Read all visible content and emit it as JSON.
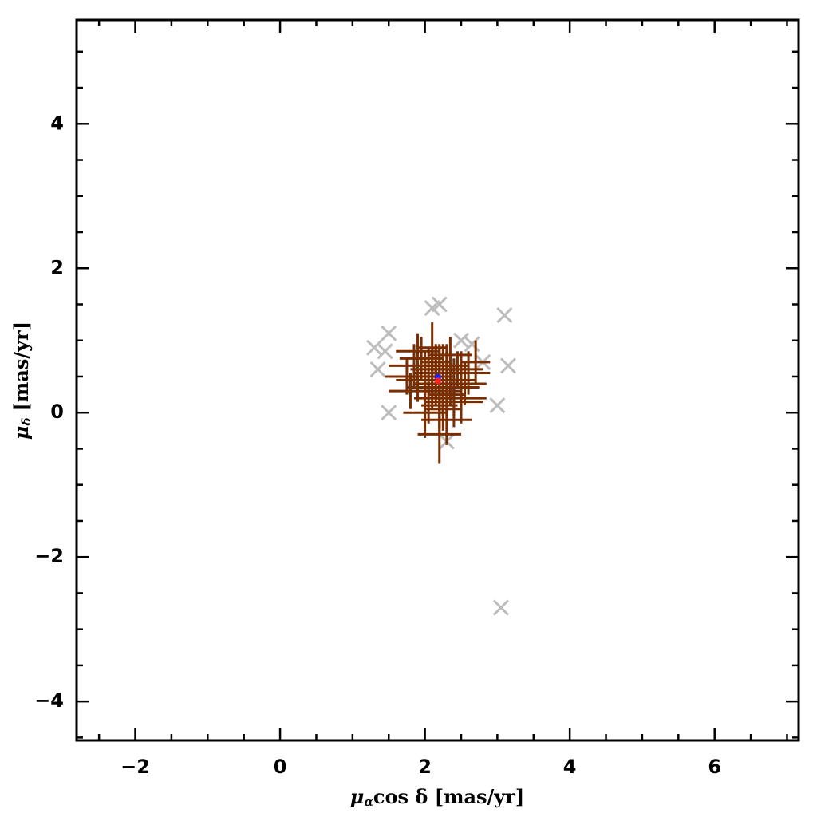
{
  "chart_data": {
    "type": "scatter",
    "xlabel": {
      "symbol": "μ",
      "sub": "α",
      "text": "cos δ [mas/yr]"
    },
    "ylabel": {
      "symbol": "μ",
      "sub": "δ",
      "text": "[mas/yr]"
    },
    "xlim": [
      -2.81,
      7.16
    ],
    "ylim": [
      -4.54,
      5.44
    ],
    "xticks": [
      -2,
      0,
      2,
      4,
      6
    ],
    "yticks": [
      -4,
      -2,
      0,
      2,
      4
    ],
    "xminorticks": [
      -2.5,
      -1.5,
      -1,
      -0.5,
      0.5,
      1,
      1.5,
      2.5,
      3,
      3.5,
      4.5,
      5,
      5.5,
      6.5,
      7
    ],
    "yminorticks": [
      -4.5,
      -3.5,
      -3,
      -2.5,
      -1.5,
      -1,
      -0.5,
      0.5,
      1,
      1.5,
      2.5,
      3,
      3.5,
      4.5,
      5
    ],
    "series": [
      {
        "marker": "cross",
        "color": "#bdbdbd",
        "x": [
          3.1,
          3.15,
          3.0,
          3.05,
          1.3,
          1.35,
          1.5,
          2.1,
          2.2,
          1.5,
          2.3,
          2.5,
          2.8,
          1.45,
          2.65
        ],
        "y": [
          1.35,
          0.65,
          0.1,
          -2.7,
          0.9,
          0.6,
          1.1,
          1.45,
          1.5,
          0.0,
          -0.4,
          1.0,
          0.7,
          0.85,
          0.95
        ]
      },
      {
        "marker": "errorbar",
        "color": "#7a2e00",
        "x": [
          2.2,
          2.1,
          2.3,
          2.0,
          2.4,
          2.15,
          2.25,
          1.9,
          2.5,
          2.05,
          2.35,
          2.2,
          1.85,
          2.55,
          2.1,
          2.3,
          2.0,
          2.45,
          2.25,
          2.15,
          1.95,
          2.4,
          2.2,
          2.6,
          1.8,
          2.7,
          2.3,
          1.75,
          2.2,
          2.05,
          2.35,
          2.25,
          1.9,
          2.15,
          2.5,
          2.1,
          2.3,
          2.0,
          2.2,
          2.4
        ],
        "y": [
          0.5,
          0.4,
          0.6,
          0.55,
          0.35,
          0.7,
          0.3,
          0.45,
          0.55,
          0.2,
          0.8,
          0.1,
          0.65,
          0.4,
          0.9,
          0.25,
          0.0,
          0.6,
          0.45,
          0.5,
          0.75,
          0.15,
          -0.3,
          0.55,
          0.3,
          0.7,
          -0.1,
          0.5,
          0.35,
          0.6,
          0.45,
          0.05,
          0.85,
          0.4,
          0.2,
          0.55,
          0.65,
          0.35,
          0.5,
          0.45
        ],
        "xerr": [
          0.2,
          0.25,
          0.3,
          0.15,
          0.35,
          0.2,
          0.25,
          0.3,
          0.4,
          0.2,
          0.3,
          0.25,
          0.35,
          0.3,
          0.2,
          0.25,
          0.3,
          0.35,
          0.2,
          0.25,
          0.3,
          0.4,
          0.3,
          0.25,
          0.3,
          0.2,
          0.35,
          0.3,
          0.2,
          0.25,
          0.3,
          0.25,
          0.3,
          0.2,
          0.35,
          0.25,
          0.3,
          0.25,
          0.15,
          0.3
        ],
        "yerr": [
          0.3,
          0.35,
          0.25,
          0.3,
          0.4,
          0.25,
          0.35,
          0.3,
          0.3,
          0.35,
          0.25,
          0.4,
          0.3,
          0.3,
          0.35,
          0.3,
          0.35,
          0.25,
          0.5,
          0.3,
          0.3,
          0.35,
          0.4,
          0.3,
          0.25,
          0.3,
          0.35,
          0.25,
          0.55,
          0.3,
          0.35,
          0.3,
          0.25,
          0.3,
          0.35,
          0.3,
          0.3,
          0.35,
          0.45,
          0.3
        ]
      },
      {
        "marker": "dot",
        "color": "#2020ff",
        "x": [
          2.18
        ],
        "y": [
          0.49
        ]
      },
      {
        "marker": "dot",
        "color": "#ff2020",
        "x": [
          2.18
        ],
        "y": [
          0.44
        ]
      }
    ]
  }
}
